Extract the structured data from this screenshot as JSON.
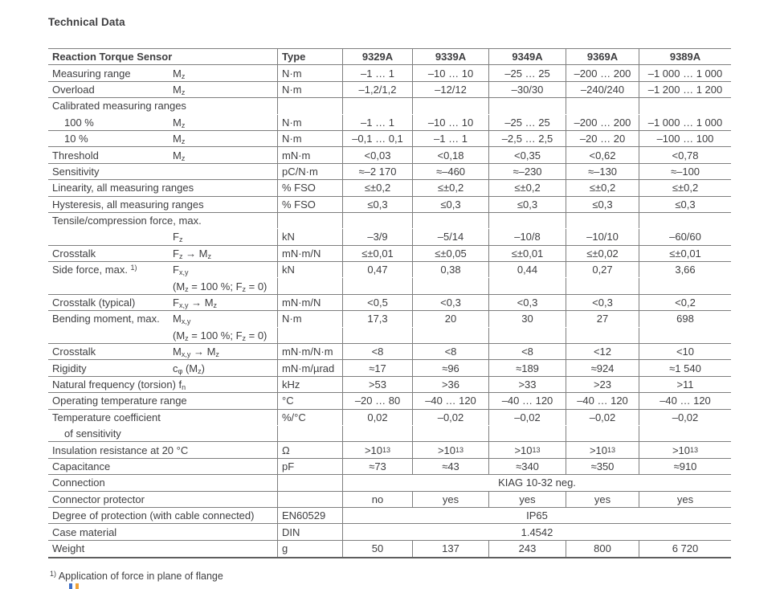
{
  "title": "Technical Data",
  "footnote": {
    "marker": "1)",
    "text": "Application of force in plane of flange"
  },
  "colors": {
    "text": "#3e3e40",
    "border": "#7e7e7e",
    "border_dark": "#5e5e5e",
    "artifact_blue": "#4070c8",
    "artifact_orange": "#f0a238"
  },
  "table": {
    "header": {
      "param": "Reaction Torque Sensor",
      "type": "Type",
      "models": [
        "9329A",
        "9339A",
        "9349A",
        "9369A",
        "9389A"
      ]
    },
    "rows": [
      {
        "label": "Measuring range",
        "symbol": "M~z~",
        "unit": "N·m",
        "values": [
          "–1 … 1",
          "–10 … 10",
          "–25 … 25",
          "–200 … 200",
          "–1 000 … 1 000"
        ]
      },
      {
        "label": "Overload",
        "symbol": "M~z~",
        "unit": "N·m",
        "values": [
          "–1,2/1,2",
          "–12/12",
          "–30/30",
          "–240/240",
          "–1 200 … 1 200"
        ]
      },
      {
        "label": "Calibrated measuring ranges",
        "section": true,
        "rule": "none"
      },
      {
        "label": "100 %",
        "indent": true,
        "symbol": "M~z~",
        "unit": "N·m",
        "values": [
          "–1 … 1",
          "–10 … 10",
          "–25 … 25",
          "–200 … 200",
          "–1 000 … 1 000"
        ]
      },
      {
        "label": "10 %",
        "indent": true,
        "symbol": "M~z~",
        "unit": "N·m",
        "values": [
          "–0,1 … 0,1",
          "–1 … 1",
          "–2,5 … 2,5",
          "–20 … 20",
          "–100 … 100"
        ]
      },
      {
        "label": "Threshold",
        "symbol": "M~z~",
        "unit": "mN·m",
        "values": [
          "<0,03",
          "<0,18",
          "<0,35",
          "<0,62",
          "<0,78"
        ]
      },
      {
        "label": "Sensitivity",
        "unit": "pC/N·m",
        "values": [
          "≈–2 170",
          "≈–460",
          "≈–230",
          "≈–130",
          "≈–100"
        ]
      },
      {
        "label": "Linearity, all measuring ranges",
        "unit": "% FSO",
        "values": [
          "≤±0,2",
          "≤±0,2",
          "≤±0,2",
          "≤±0,2",
          "≤±0,2"
        ]
      },
      {
        "label": "Hysteresis, all measuring ranges",
        "unit": "% FSO",
        "values": [
          "≤0,3",
          "≤0,3",
          "≤0,3",
          "≤0,3",
          "≤0,3"
        ]
      },
      {
        "label": "Tensile/compression force, max.",
        "section": true,
        "rule": "none"
      },
      {
        "label": "",
        "symbol": "F~z~",
        "unit": "kN",
        "values": [
          "–3/9",
          "–5/14",
          "–10/8",
          "–10/10",
          "–60/60"
        ]
      },
      {
        "label": "Crosstalk",
        "symbol": "F~z~ → M~z~",
        "unit": "mN·m/N",
        "values": [
          "≤±0,01",
          "≤±0,05",
          "≤±0,01",
          "≤±0,02",
          "≤±0,01"
        ]
      },
      {
        "label": "Side force, max. ^1)^",
        "symbol": "F~x,y~",
        "unit": "kN",
        "values": [
          "0,47",
          "0,38",
          "0,44",
          "0,27",
          "3,66"
        ],
        "rule": "none"
      },
      {
        "label": "",
        "symbol": "(M~z~ = 100 %; F~z~ = 0)",
        "values": [
          "",
          "",
          "",
          "",
          ""
        ]
      },
      {
        "label": "Crosstalk (typical)",
        "symbol": "F~x,y~ → M~z~",
        "unit": "mN·m/N",
        "values": [
          "<0,5",
          "<0,3",
          "<0,3",
          "<0,3",
          "<0,2"
        ]
      },
      {
        "label": "Bending moment, max.",
        "symbol": "M~x,y~",
        "unit": "N·m",
        "values": [
          "17,3",
          "20",
          "30",
          "27",
          "698"
        ],
        "rule": "none"
      },
      {
        "label": "",
        "symbol": "(M~z~ = 100 %; F~z~ = 0)",
        "values": [
          "",
          "",
          "",
          "",
          ""
        ]
      },
      {
        "label": "Crosstalk",
        "symbol": "M~x,y~ → M~z~",
        "unit": "mN·m/N·m",
        "values": [
          "<8",
          "<8",
          "<8",
          "<12",
          "<10"
        ]
      },
      {
        "label": "Rigidity",
        "symbol": "c~φ~ (M~z~)",
        "unit": "mN·m/µrad",
        "values": [
          "≈17",
          "≈96",
          "≈189",
          "≈924",
          "≈1 540"
        ]
      },
      {
        "label": "Natural frequency (torsion) f~n~",
        "unit": "kHz",
        "values": [
          ">53",
          ">36",
          ">33",
          ">23",
          ">11"
        ]
      },
      {
        "label": "Operating temperature range",
        "unit": "°C",
        "values": [
          "–20 … 80",
          "–40 … 120",
          "–40 … 120",
          "–40 … 120",
          "–40 … 120"
        ]
      },
      {
        "label": "Temperature coefficient",
        "unit": "%/°C",
        "values": [
          "0,02",
          "–0,02",
          "–0,02",
          "–0,02",
          "–0,02"
        ],
        "rule": "none"
      },
      {
        "label": "of sensitivity",
        "indent": true,
        "values": [
          "",
          "",
          "",
          "",
          ""
        ]
      },
      {
        "label": "Insulation resistance at 20 °C",
        "unit": "Ω",
        "values": [
          ">10^13^",
          ">10^13^",
          ">10^13^",
          ">10^13^",
          ">10^13^"
        ]
      },
      {
        "label": "Capacitance",
        "unit": "pF",
        "values": [
          "≈73",
          "≈43",
          "≈340",
          "≈350",
          "≈910"
        ]
      },
      {
        "label": "Connection",
        "span_value": "KIAG 10-32 neg."
      },
      {
        "label": "Connector protector",
        "values": [
          "no",
          "yes",
          "yes",
          "yes",
          "yes"
        ]
      },
      {
        "label": "Degree of protection (with cable connected)",
        "unit": "EN60529",
        "span_value": "IP65"
      },
      {
        "label": "Case material",
        "unit": "DIN",
        "span_value": "1.4542"
      },
      {
        "label": "Weight",
        "unit": "g",
        "values": [
          "50",
          "137",
          "243",
          "800",
          "6 720"
        ]
      }
    ]
  }
}
